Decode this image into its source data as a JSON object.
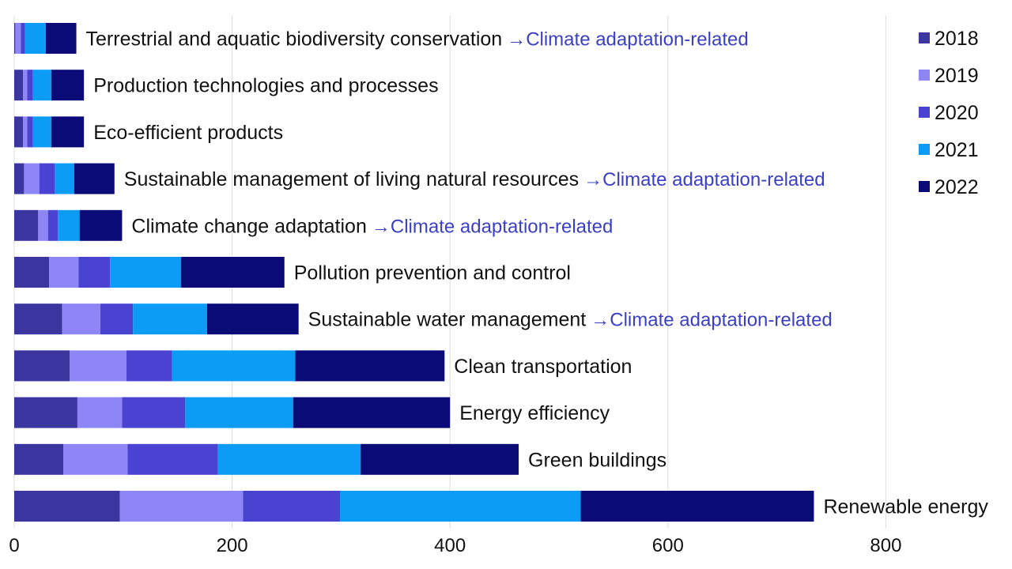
{
  "chart_data": {
    "type": "bar",
    "orientation": "horizontal",
    "stacked": true,
    "categories": [
      "Terrestrial and aquatic biodiversity conservation",
      "Production technologies and processes",
      "Eco-efficient products",
      "Sustainable management of living natural resources",
      "Climate change adaptation",
      "Pollution prevention and control",
      "Sustainable water management",
      "Clean transportation",
      "Energy efficiency",
      "Green buildings",
      "Renewable energy"
    ],
    "annotations": [
      "Climate adaptation-related",
      "",
      "",
      "Climate adaptation-related",
      "Climate adaptation-related",
      "",
      "Climate adaptation-related",
      "",
      "",
      "",
      ""
    ],
    "annotation_arrow": "→",
    "series": [
      {
        "name": "2018",
        "color": "#3b35a0",
        "values": [
          1,
          8,
          8,
          9,
          22,
          32,
          44,
          51,
          58,
          45,
          97
        ]
      },
      {
        "name": "2019",
        "color": "#8e85f7",
        "values": [
          5,
          4,
          4,
          14,
          9,
          27,
          35,
          52,
          41,
          59,
          113
        ]
      },
      {
        "name": "2020",
        "color": "#4a43d2",
        "values": [
          4,
          5,
          5,
          14,
          9,
          29,
          30,
          42,
          58,
          83,
          89
        ]
      },
      {
        "name": "2021",
        "color": "#0d9cf5",
        "values": [
          19,
          17,
          17,
          18,
          20,
          65,
          68,
          113,
          99,
          131,
          221
        ]
      },
      {
        "name": "2022",
        "color": "#0b0b78",
        "values": [
          28,
          30,
          30,
          37,
          39,
          95,
          84,
          137,
          144,
          145,
          214
        ]
      }
    ],
    "x_ticks": [
      "0",
      "200",
      "400",
      "600",
      "800"
    ],
    "xlim": [
      0,
      800
    ],
    "grid": true,
    "legend_position": "top-right",
    "title": "",
    "xlabel": "",
    "ylabel": ""
  }
}
